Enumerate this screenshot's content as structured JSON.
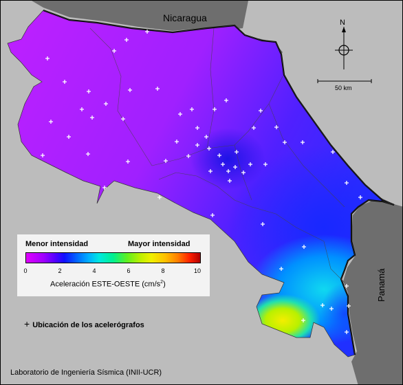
{
  "map": {
    "neighbor_north": "Nicaragua",
    "neighbor_south": "Panamá",
    "north_label": "N",
    "scale_label": "50 km"
  },
  "legend": {
    "min_label": "Menor intensidad",
    "max_label": "Mayor intensidad",
    "ticks": [
      "0",
      "2",
      "4",
      "6",
      "8",
      "10"
    ],
    "title_main": "Aceleración ESTE-OESTE (cm/s",
    "title_sup": "2",
    "title_end": ")",
    "station_symbol": "+",
    "station_label": "Ubicación de los acelerógrafos"
  },
  "credit": "Laboratorio de Ingeniería Sísmica (INII-UCR)",
  "colors": {
    "ocean": "#bcbcbc",
    "land_gray": "#6e6e6e",
    "low": "#cc22ff",
    "mid": "#2020ff",
    "high": "#f0f000"
  }
}
